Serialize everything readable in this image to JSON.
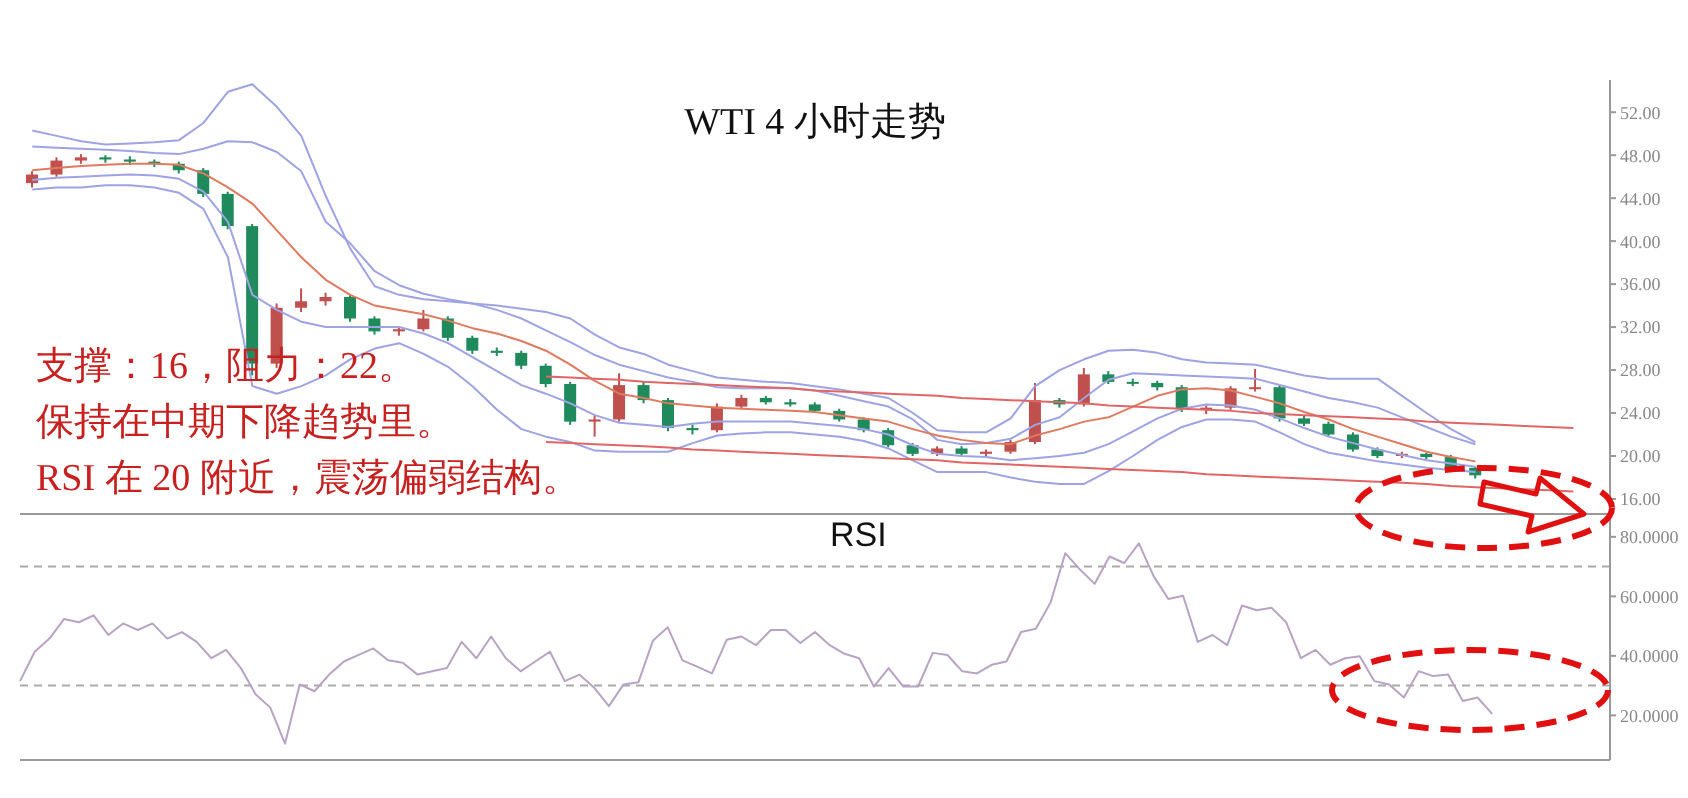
{
  "chart_data": [
    {
      "type": "candlestick",
      "title": "WTI 4 小时走势",
      "categories": [
        null,
        null,
        null,
        null,
        null,
        null,
        null,
        null,
        null,
        null,
        null,
        null,
        null,
        null,
        null,
        null,
        null,
        null,
        null,
        null,
        null,
        null,
        null,
        null,
        null,
        null,
        null,
        null,
        null,
        null,
        null,
        null,
        null,
        null,
        null,
        null,
        null,
        null,
        null,
        null,
        null,
        null,
        null,
        null,
        null,
        null,
        null,
        null,
        null,
        null,
        null,
        null,
        null,
        null,
        null,
        null,
        null,
        null,
        null,
        null,
        null,
        null,
        null,
        null,
        null
      ],
      "ohlc": [
        [
          45.4,
          46.5,
          45.0,
          46.2
        ],
        [
          46.2,
          47.8,
          46.0,
          47.5
        ],
        [
          47.5,
          48.1,
          47.2,
          47.8
        ],
        [
          47.8,
          48.0,
          47.3,
          47.6
        ],
        [
          47.6,
          47.9,
          47.1,
          47.4
        ],
        [
          47.4,
          47.6,
          46.9,
          47.2
        ],
        [
          47.2,
          47.4,
          46.3,
          46.6
        ],
        [
          46.6,
          46.8,
          44.1,
          44.4
        ],
        [
          44.4,
          44.6,
          41.1,
          41.4
        ],
        [
          41.4,
          41.6,
          27.5,
          28.6
        ],
        [
          28.6,
          34.2,
          28.2,
          33.8
        ],
        [
          33.8,
          35.6,
          33.4,
          34.4
        ],
        [
          34.4,
          35.2,
          34.0,
          34.8
        ],
        [
          34.8,
          35.0,
          32.5,
          32.8
        ],
        [
          32.8,
          33.0,
          31.3,
          31.6
        ],
        [
          31.6,
          32.0,
          31.2,
          31.8
        ],
        [
          31.8,
          33.6,
          31.6,
          32.8
        ],
        [
          32.8,
          33.0,
          30.7,
          31.0
        ],
        [
          31.0,
          31.2,
          29.5,
          29.8
        ],
        [
          29.8,
          30.1,
          29.3,
          29.6
        ],
        [
          29.6,
          29.8,
          28.1,
          28.4
        ],
        [
          28.4,
          28.6,
          26.4,
          26.7
        ],
        [
          26.7,
          26.9,
          22.9,
          23.2
        ],
        [
          23.2,
          23.8,
          21.8,
          23.4
        ],
        [
          23.4,
          27.7,
          23.2,
          26.6
        ],
        [
          26.6,
          26.9,
          24.9,
          25.2
        ],
        [
          25.2,
          25.4,
          22.3,
          22.6
        ],
        [
          22.6,
          22.9,
          22.0,
          22.4
        ],
        [
          22.4,
          24.9,
          22.2,
          24.6
        ],
        [
          24.6,
          25.7,
          24.4,
          25.4
        ],
        [
          25.4,
          25.6,
          24.8,
          25.0
        ],
        [
          25.0,
          25.3,
          24.6,
          24.8
        ],
        [
          24.8,
          25.0,
          24.0,
          24.2
        ],
        [
          24.2,
          24.4,
          23.2,
          23.4
        ],
        [
          23.4,
          23.6,
          22.2,
          22.4
        ],
        [
          22.4,
          22.6,
          20.8,
          21.0
        ],
        [
          21.0,
          21.2,
          20.0,
          20.2
        ],
        [
          20.2,
          20.9,
          20.0,
          20.7
        ],
        [
          20.7,
          20.9,
          20.0,
          20.2
        ],
        [
          20.2,
          20.6,
          20.0,
          20.4
        ],
        [
          20.4,
          21.5,
          20.2,
          21.3
        ],
        [
          21.3,
          26.8,
          21.1,
          25.2
        ],
        [
          25.2,
          25.4,
          24.5,
          24.8
        ],
        [
          24.8,
          28.2,
          24.6,
          27.6
        ],
        [
          27.6,
          27.9,
          26.7,
          26.9
        ],
        [
          26.9,
          27.2,
          26.5,
          26.8
        ],
        [
          26.8,
          27.0,
          26.1,
          26.4
        ],
        [
          26.4,
          26.6,
          24.1,
          24.4
        ],
        [
          24.4,
          24.7,
          23.9,
          24.5
        ],
        [
          24.5,
          26.5,
          24.3,
          26.3
        ],
        [
          26.3,
          28.1,
          26.0,
          26.4
        ],
        [
          26.4,
          26.6,
          23.2,
          23.5
        ],
        [
          23.5,
          23.8,
          22.8,
          23.0
        ],
        [
          23.0,
          23.2,
          21.8,
          22.0
        ],
        [
          22.0,
          22.2,
          20.4,
          20.6
        ],
        [
          20.6,
          20.8,
          19.8,
          20.0
        ],
        [
          20.0,
          20.4,
          19.8,
          20.2
        ],
        [
          20.2,
          20.3,
          19.7,
          19.9
        ],
        [
          19.9,
          20.1,
          18.7,
          18.9
        ],
        [
          18.9,
          19.0,
          17.9,
          18.2
        ],
        null,
        null,
        null,
        null,
        null
      ],
      "colors": [
        "#c0504d",
        "#c0504d",
        "#c0504d",
        "#1f8a5c",
        "#1f8a5c",
        "#1f8a5c",
        "#1f8a5c",
        "#1f8a5c",
        "#1f8a5c",
        "#1f8a5c",
        "#c0504d",
        "#c0504d",
        "#c0504d",
        "#1f8a5c",
        "#1f8a5c",
        "#c0504d",
        "#c0504d",
        "#1f8a5c",
        "#1f8a5c",
        "#1f8a5c",
        "#1f8a5c",
        "#1f8a5c",
        "#1f8a5c",
        "#c0504d",
        "#c0504d",
        "#1f8a5c",
        "#1f8a5c",
        "#1f8a5c",
        "#c0504d",
        "#c0504d",
        "#1f8a5c",
        "#1f8a5c",
        "#1f8a5c",
        "#1f8a5c",
        "#1f8a5c",
        "#1f8a5c",
        "#1f8a5c",
        "#c0504d",
        "#1f8a5c",
        "#c0504d",
        "#c0504d",
        "#c0504d",
        "#1f8a5c",
        "#c0504d",
        "#1f8a5c",
        "#1f8a5c",
        "#1f8a5c",
        "#1f8a5c",
        "#c0504d",
        "#c0504d",
        "#c0504d",
        "#1f8a5c",
        "#1f8a5c",
        "#1f8a5c",
        "#1f8a5c",
        "#1f8a5c",
        "#c0504d",
        "#1f8a5c",
        "#1f8a5c",
        "#1f8a5c",
        null,
        null,
        null,
        null,
        null
      ],
      "series": [
        {
          "type": "line",
          "color": "#9ea3e3",
          "values": [
            50.3,
            49.8,
            49.3,
            49,
            49.1,
            49.2,
            49.4,
            51,
            53.9,
            54.6,
            52.5,
            49.8,
            44.2,
            39.3,
            35.8,
            35,
            34.6,
            34.4,
            34.2,
            34,
            33.7,
            33.4,
            32.8,
            31.3,
            30.1,
            29.5,
            28.5,
            27.9,
            27.3,
            27.1,
            26.9,
            26.8,
            26.5,
            26.2,
            25.8,
            25.4,
            24,
            22.4,
            22.2,
            22.2,
            23.5,
            26.5,
            28,
            29,
            29.8,
            29.9,
            29.6,
            29,
            28.7,
            28.6,
            28.5,
            28,
            27.5,
            27.2,
            27.2,
            27.2,
            25.6,
            24,
            22.5,
            21.3,
            null,
            null,
            null,
            null,
            null
          ]
        },
        {
          "type": "line",
          "color": "#9ea3e3",
          "values": [
            48.8,
            48.7,
            48.6,
            48.5,
            48.4,
            48.2,
            48.1,
            48.6,
            49.3,
            49.2,
            48.3,
            46.5,
            41.8,
            39.8,
            37.2,
            35.9,
            35.1,
            34.6,
            34.2,
            33.6,
            32.8,
            31.7,
            30.6,
            29.4,
            28.5,
            27.9,
            27.3,
            26.9,
            26.4,
            26.3,
            26.3,
            26.3,
            26.1,
            25.6,
            25.1,
            24.6,
            23.4,
            21.5,
            21.1,
            21.2,
            21.6,
            22.9,
            23.6,
            25.4,
            27.1,
            27.7,
            27.6,
            27.5,
            27.4,
            27.3,
            27.2,
            26.6,
            26,
            25.4,
            25,
            24.5,
            23.6,
            22.7,
            21.8,
            21.1,
            null,
            null,
            null,
            null,
            null
          ]
        },
        {
          "type": "line",
          "color": "#e07a5f",
          "values": [
            46.6,
            46.8,
            47,
            47.1,
            47.2,
            47.2,
            47.1,
            46.3,
            45,
            43.5,
            41,
            38.5,
            36.4,
            35,
            34,
            33.6,
            33.2,
            32.6,
            31.9,
            31.4,
            30.7,
            29.8,
            28.5,
            27,
            25.8,
            25.4,
            24.9,
            24.7,
            24.5,
            24.4,
            24.3,
            24.2,
            24.1,
            23.8,
            23.5,
            23.2,
            22.5,
            21.9,
            21.5,
            21.2,
            21.1,
            21.9,
            22.5,
            23.2,
            23.6,
            24.6,
            25.6,
            26.2,
            26.3,
            26.1,
            25.5,
            24.9,
            24.1,
            23.4,
            22.5,
            21.8,
            21.1,
            20.4,
            19.9,
            19.5,
            null,
            null,
            null,
            null,
            null
          ]
        },
        {
          "type": "line",
          "color": "#9ea3e3",
          "values": [
            45.7,
            45.9,
            46,
            46.1,
            46.2,
            46.1,
            45.8,
            44.6,
            41.8,
            35,
            33.6,
            32.5,
            32,
            32,
            32,
            32,
            31.4,
            30.5,
            29.2,
            27.9,
            26.6,
            25.8,
            24.9,
            23.8,
            23.1,
            22.9,
            22.7,
            23,
            23.2,
            23.2,
            23.2,
            23.2,
            23,
            22.8,
            22.5,
            22,
            21,
            20.2,
            20,
            19.9,
            19.6,
            19.8,
            20,
            20.3,
            21.1,
            22.3,
            23.5,
            24.4,
            24.8,
            24.7,
            24.3,
            23.5,
            22.6,
            21.8,
            21.2,
            20.6,
            20.1,
            19.6,
            19.3,
            19,
            null,
            null,
            null,
            null,
            null
          ]
        },
        {
          "type": "line",
          "color": "#9ea3e3",
          "values": [
            44.8,
            45,
            45,
            45.2,
            45.2,
            45,
            44.5,
            43,
            38.5,
            26.5,
            25.8,
            26.5,
            27.5,
            29,
            30,
            30.5,
            29.5,
            28.3,
            26.5,
            24.3,
            22.5,
            21.8,
            21.3,
            20.5,
            20.4,
            20.4,
            20.4,
            21.2,
            21.9,
            22.1,
            22.2,
            22.2,
            22,
            21.8,
            21.4,
            20.7,
            19.6,
            18.5,
            18.5,
            18.5,
            18,
            17.6,
            17.4,
            17.4,
            18.6,
            20,
            21.5,
            22.7,
            23.4,
            23.4,
            23.2,
            22.2,
            21.1,
            20.3,
            19.9,
            19.5,
            19.2,
            18.9,
            18.7,
            18.5,
            null,
            null,
            null,
            null,
            null
          ]
        },
        {
          "type": "line",
          "color": "#e06666",
          "values": [
            null,
            null,
            null,
            null,
            null,
            null,
            null,
            null,
            null,
            null,
            null,
            null,
            null,
            null,
            null,
            null,
            null,
            null,
            null,
            null,
            null,
            27.4,
            27.3,
            27.2,
            27.1,
            26.9,
            26.8,
            26.7,
            26.6,
            26.5,
            26.4,
            26.3,
            26.1,
            26.0,
            25.9,
            25.8,
            25.7,
            25.6,
            25.4,
            25.3,
            25.2,
            25.1,
            25.0,
            24.9,
            24.7,
            24.6,
            24.5,
            24.4,
            24.3,
            24.2,
            24.0,
            23.9,
            23.8,
            23.7,
            23.6,
            23.5,
            23.4,
            23.2,
            23.1,
            23.0,
            22.9,
            22.8,
            22.7,
            22.6,
            null
          ]
        },
        {
          "type": "line",
          "color": "#e06666",
          "values": [
            null,
            null,
            null,
            null,
            null,
            null,
            null,
            null,
            null,
            null,
            null,
            null,
            null,
            null,
            null,
            null,
            null,
            null,
            null,
            null,
            null,
            21.3,
            21.2,
            21.1,
            21.0,
            20.9,
            20.8,
            20.6,
            20.5,
            20.4,
            20.3,
            20.2,
            20.1,
            20.0,
            19.9,
            19.8,
            19.7,
            19.6,
            19.4,
            19.3,
            19.2,
            19.1,
            19.0,
            18.9,
            18.8,
            18.7,
            18.6,
            18.5,
            18.3,
            18.2,
            18.1,
            18.0,
            17.9,
            17.8,
            17.7,
            17.6,
            17.5,
            17.4,
            17.2,
            17.1,
            17.0,
            16.9,
            16.8,
            16.7,
            null
          ]
        }
      ],
      "ylim": [
        14.6,
        55
      ],
      "yticks": [
        {
          "value": 16,
          "label": "16.00"
        },
        {
          "value": 20,
          "label": "20.00"
        },
        {
          "value": 24,
          "label": "24.00"
        },
        {
          "value": 28,
          "label": "28.00"
        },
        {
          "value": 32,
          "label": "32.00"
        },
        {
          "value": 36,
          "label": "36.00"
        },
        {
          "value": 40,
          "label": "40.00"
        },
        {
          "value": 44,
          "label": "44.00"
        },
        {
          "value": 48,
          "label": "48.00"
        },
        {
          "value": 52,
          "label": "52.00"
        }
      ],
      "tick_labels": "y",
      "annotations": [
        "支撑：16，阻力：22。",
        "保持在中期下降趋势里。",
        "RSI 在 20 附近，震荡偏弱结构。"
      ]
    },
    {
      "type": "line",
      "title": "RSI",
      "categories": [
        null,
        null,
        null,
        null,
        null,
        null,
        null,
        null,
        null,
        null,
        null,
        null,
        null,
        null,
        null,
        null,
        null,
        null,
        null,
        null,
        null,
        null,
        null,
        null,
        null,
        null,
        null,
        null,
        null,
        null,
        null,
        null,
        null,
        null,
        null,
        null,
        null,
        null,
        null,
        null,
        null,
        null,
        null,
        null,
        null,
        null,
        null,
        null,
        null,
        null,
        null,
        null,
        null,
        null,
        null,
        null,
        null,
        null,
        null,
        null,
        null,
        null,
        null,
        null,
        null,
        null,
        null,
        null,
        null,
        null,
        null,
        null,
        null,
        null,
        null,
        null,
        null,
        null,
        null,
        null,
        null,
        null,
        null,
        null,
        null,
        null,
        null,
        null,
        null,
        null,
        null,
        null,
        null,
        null,
        null,
        null,
        null,
        null,
        null,
        null,
        null,
        null,
        null,
        null,
        null,
        null,
        null,
        null,
        null
      ],
      "series": [
        {
          "color": "#b9a3c4",
          "values": [
            31.5,
            41.4,
            45.8,
            52.4,
            51.3,
            53.6,
            47,
            50.9,
            48.7,
            50.9,
            45.8,
            48,
            44.7,
            39.2,
            42,
            35.9,
            27.1,
            22.6,
            10.5,
            30.4,
            28.1,
            33.7,
            38.1,
            40.3,
            42.5,
            38.5,
            37.7,
            33.7,
            34.8,
            35.9,
            44.7,
            39.2,
            46.5,
            39.2,
            34.8,
            38.1,
            41.4,
            31.5,
            33.7,
            29.3,
            23.1,
            30.4,
            31.1,
            45.2,
            49.6,
            38.5,
            36.4,
            34.1,
            45.4,
            46.5,
            43.6,
            48.7,
            48.7,
            44.3,
            48,
            43.6,
            40.7,
            39.2,
            29.7,
            35.9,
            29.7,
            29.7,
            41,
            40.3,
            34.8,
            34.1,
            37,
            38.1,
            48,
            49.1,
            57.9,
            74.5,
            69,
            64.2,
            73.4,
            71.2,
            77.8,
            66.8,
            59.1,
            60.2,
            44.7,
            47,
            43.6,
            56.9,
            55.3,
            56.2,
            51.3,
            39.2,
            42,
            37,
            39.2,
            39.9,
            31.5,
            30.4,
            26,
            34.8,
            33.2,
            33.7,
            24.8,
            26,
            20.5,
            null,
            null,
            null,
            null,
            null,
            null,
            null,
            null
          ]
        }
      ],
      "ylim": [
        5,
        87
      ],
      "yticks": [
        {
          "value": 20,
          "label": "20.0000"
        },
        {
          "value": 40,
          "label": "40.0000"
        },
        {
          "value": 60,
          "label": "60.0000"
        },
        {
          "value": 80,
          "label": "80.0000"
        }
      ],
      "tick_labels": "y",
      "ref_lines": [
        {
          "axis": "y",
          "value": 70,
          "color": "#aaaaaa",
          "line_style": "dashed"
        },
        {
          "axis": "y",
          "value": 30,
          "color": "#aaaaaa",
          "line_style": "dashed"
        }
      ]
    }
  ]
}
